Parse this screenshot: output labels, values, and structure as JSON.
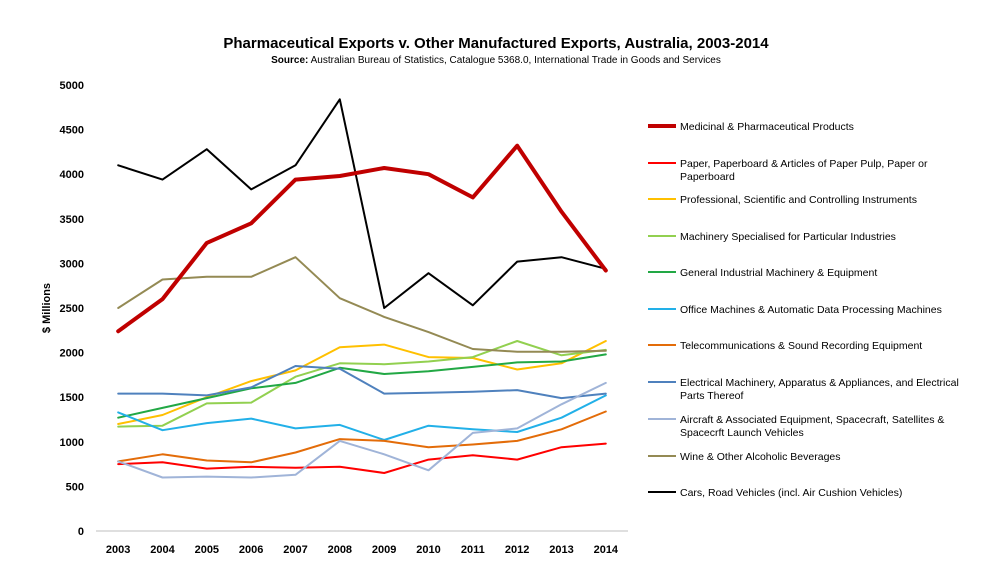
{
  "chart_data": {
    "type": "line",
    "title": "Pharmaceutical Exports v. Other Manufactured Exports, Australia, 2003-2014",
    "subtitle_source_label": "Source:",
    "subtitle_source_text": " Australian Bureau of Statistics, Catalogue 5368.0, International Trade in Goods and Services",
    "xlabel": "",
    "ylabel": "$ Millions",
    "ylim": [
      0,
      5000
    ],
    "yticks": [
      0,
      500,
      1000,
      1500,
      2000,
      2500,
      3000,
      3500,
      4000,
      4500,
      5000
    ],
    "x": [
      "2003",
      "2004",
      "2005",
      "2006",
      "2007",
      "2008",
      "2009",
      "2010",
      "2011",
      "2012",
      "2013",
      "2014"
    ],
    "grid": false,
    "legend_position": "right",
    "series": [
      {
        "name": "Medicinal & Pharmaceutical Products",
        "color": "#c00000",
        "width": 4,
        "values": [
          2240,
          2600,
          3230,
          3450,
          3940,
          3980,
          4070,
          4000,
          3740,
          4320,
          3580,
          2920
        ]
      },
      {
        "name": "Paper, Paperboard & Articles of Paper Pulp, Paper or Paperboard",
        "color": "#ff0000",
        "width": 2,
        "values": [
          750,
          770,
          700,
          720,
          710,
          720,
          650,
          800,
          850,
          800,
          940,
          980
        ]
      },
      {
        "name": "Professional, Scientific and Controlling Instruments",
        "color": "#ffc000",
        "width": 2,
        "values": [
          1200,
          1300,
          1500,
          1680,
          1800,
          2060,
          2090,
          1950,
          1940,
          1810,
          1880,
          2130
        ]
      },
      {
        "name": "Machinery Specialised for Particular Industries",
        "color": "#92d050",
        "width": 2,
        "values": [
          1170,
          1180,
          1430,
          1440,
          1730,
          1880,
          1870,
          1900,
          1950,
          2130,
          1970,
          2030
        ]
      },
      {
        "name": "General Industrial Machinery & Equipment",
        "color": "#22a845",
        "width": 2,
        "values": [
          1270,
          1380,
          1490,
          1600,
          1660,
          1830,
          1760,
          1790,
          1840,
          1890,
          1900,
          1980
        ]
      },
      {
        "name": "Office Machines & Automatic Data Processing Machines",
        "color": "#22b0e8",
        "width": 2,
        "values": [
          1330,
          1130,
          1210,
          1260,
          1150,
          1190,
          1020,
          1180,
          1140,
          1110,
          1270,
          1520
        ]
      },
      {
        "name": "Telecommunications & Sound Recording Equipment",
        "color": "#e36c09",
        "width": 2,
        "values": [
          780,
          860,
          790,
          770,
          880,
          1030,
          1010,
          940,
          970,
          1010,
          1140,
          1340
        ]
      },
      {
        "name": "Electrical Machinery, Apparatus & Appliances, and Electrical Parts Thereof",
        "color": "#4f81bd",
        "width": 2,
        "values": [
          1540,
          1540,
          1520,
          1610,
          1850,
          1820,
          1540,
          1550,
          1560,
          1580,
          1490,
          1540
        ]
      },
      {
        "name": "Aircraft & Associated Equipment, Spacecraft, Satellites & Spacecrft Launch Vehicles",
        "color": "#a0b4d8",
        "width": 2,
        "values": [
          780,
          600,
          610,
          600,
          630,
          1010,
          860,
          680,
          1100,
          1150,
          1420,
          1660
        ]
      },
      {
        "name": "Wine & Other Alcoholic Beverages",
        "color": "#948a54",
        "width": 2,
        "values": [
          2500,
          2820,
          2850,
          2850,
          3070,
          2610,
          2400,
          2230,
          2040,
          2010,
          2010,
          2020
        ]
      },
      {
        "name": "Cars, Road Vehicles (incl. Air Cushion Vehicles)",
        "color": "#000000",
        "width": 2,
        "values": [
          4100,
          3940,
          4280,
          3830,
          4100,
          4840,
          2500,
          2890,
          2530,
          3020,
          3070,
          2940
        ]
      }
    ]
  }
}
